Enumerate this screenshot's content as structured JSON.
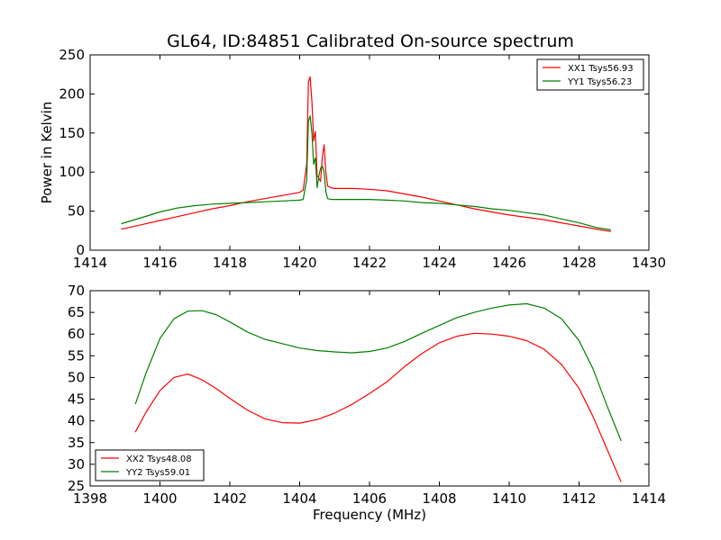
{
  "figure": {
    "title": "GL64, ID:84851 Calibrated On-source spectrum"
  },
  "colors": {
    "red": "#ff0000",
    "green": "#008000"
  },
  "chart_data": [
    {
      "type": "line",
      "title": "GL64, ID:84851 Calibrated On-source spectrum",
      "xlabel": "",
      "ylabel": "Power in Kelvin",
      "xlim": [
        1414,
        1430
      ],
      "ylim": [
        0,
        250
      ],
      "xticks": [
        1414,
        1416,
        1418,
        1420,
        1422,
        1424,
        1426,
        1428,
        1430
      ],
      "yticks": [
        0,
        50,
        100,
        150,
        200,
        250
      ],
      "grid": false,
      "legend": "top-right",
      "series": [
        {
          "name": "XX1 Tsys56.93",
          "color": "#ff0000",
          "x": [
            1414.9,
            1415.5,
            1416.0,
            1416.5,
            1417.0,
            1417.5,
            1418.0,
            1418.5,
            1419.0,
            1419.5,
            1420.0,
            1420.1,
            1420.2,
            1420.25,
            1420.3,
            1420.35,
            1420.4,
            1420.45,
            1420.5,
            1420.55,
            1420.6,
            1420.65,
            1420.7,
            1420.75,
            1420.8,
            1420.9,
            1421.0,
            1421.5,
            1422.0,
            1422.5,
            1423.0,
            1423.5,
            1424.0,
            1424.5,
            1425.0,
            1425.5,
            1426.0,
            1426.5,
            1427.0,
            1427.5,
            1428.0,
            1428.5,
            1428.9
          ],
          "y": [
            27,
            33,
            38,
            43,
            48,
            53,
            57,
            62,
            66,
            70,
            74,
            77,
            110,
            215,
            222,
            190,
            140,
            152,
            95,
            92,
            88,
            120,
            135,
            100,
            82,
            80,
            79,
            79,
            78,
            76,
            72,
            68,
            63,
            58,
            53,
            49,
            45,
            42,
            39,
            35,
            31,
            27,
            24
          ]
        },
        {
          "name": "YY1 Tsys56.23",
          "color": "#008000",
          "x": [
            1414.9,
            1415.5,
            1416.0,
            1416.5,
            1417.0,
            1417.5,
            1418.0,
            1418.5,
            1419.0,
            1419.5,
            1420.0,
            1420.1,
            1420.2,
            1420.25,
            1420.3,
            1420.35,
            1420.4,
            1420.45,
            1420.5,
            1420.55,
            1420.6,
            1420.65,
            1420.7,
            1420.75,
            1420.8,
            1420.9,
            1421.0,
            1421.5,
            1422.0,
            1422.5,
            1423.0,
            1423.5,
            1424.0,
            1424.5,
            1425.0,
            1425.5,
            1426.0,
            1426.5,
            1427.0,
            1427.5,
            1428.0,
            1428.5,
            1428.9
          ],
          "y": [
            34,
            42,
            49,
            54,
            57,
            59,
            60,
            61,
            62,
            63,
            64,
            65,
            90,
            165,
            172,
            150,
            110,
            118,
            80,
            95,
            105,
            108,
            100,
            75,
            66,
            65,
            65,
            65,
            65,
            64,
            63,
            61,
            60,
            58,
            56,
            53,
            51,
            48,
            45,
            40,
            35,
            29,
            26
          ]
        }
      ]
    },
    {
      "type": "line",
      "title": "",
      "xlabel": "Frequency (MHz)",
      "ylabel": "",
      "xlim": [
        1398,
        1414
      ],
      "ylim": [
        25,
        70
      ],
      "xticks": [
        1398,
        1400,
        1402,
        1404,
        1406,
        1408,
        1410,
        1412,
        1414
      ],
      "yticks": [
        25,
        30,
        35,
        40,
        45,
        50,
        55,
        60,
        65,
        70
      ],
      "grid": false,
      "legend": "bottom-left",
      "series": [
        {
          "name": "XX2 Tsys48.08",
          "color": "#ff0000",
          "x": [
            1399.3,
            1399.6,
            1400.0,
            1400.4,
            1400.8,
            1401.2,
            1401.6,
            1402.0,
            1402.5,
            1403.0,
            1403.5,
            1404.0,
            1404.5,
            1405.0,
            1405.5,
            1406.0,
            1406.5,
            1407.0,
            1407.5,
            1408.0,
            1408.5,
            1409.0,
            1409.5,
            1410.0,
            1410.5,
            1411.0,
            1411.5,
            1412.0,
            1412.4,
            1412.8,
            1413.2
          ],
          "y": [
            37.5,
            42,
            47,
            50,
            50.8,
            49.5,
            47.5,
            45.2,
            42.5,
            40.5,
            39.6,
            39.5,
            40.3,
            41.8,
            43.8,
            46.3,
            49.0,
            52.5,
            55.5,
            58.0,
            59.5,
            60.2,
            60.0,
            59.5,
            58.5,
            56.5,
            53.0,
            47.5,
            41.0,
            33.5,
            26.0
          ]
        },
        {
          "name": "YY2 Tsys59.01",
          "color": "#008000",
          "x": [
            1399.3,
            1399.6,
            1400.0,
            1400.4,
            1400.8,
            1401.2,
            1401.6,
            1402.0,
            1402.5,
            1403.0,
            1403.5,
            1404.0,
            1404.5,
            1405.0,
            1405.5,
            1406.0,
            1406.5,
            1407.0,
            1407.5,
            1408.0,
            1408.5,
            1409.0,
            1409.5,
            1410.0,
            1410.5,
            1411.0,
            1411.5,
            1412.0,
            1412.4,
            1412.8,
            1413.2
          ],
          "y": [
            44,
            51,
            59,
            63.5,
            65.3,
            65.4,
            64.5,
            62.8,
            60.5,
            58.8,
            57.8,
            56.8,
            56.2,
            55.9,
            55.7,
            56.0,
            56.8,
            58.3,
            60.2,
            62.0,
            63.8,
            65.0,
            66.0,
            66.7,
            67.0,
            66.0,
            63.5,
            58.5,
            52.0,
            43.5,
            35.5
          ]
        }
      ]
    }
  ]
}
